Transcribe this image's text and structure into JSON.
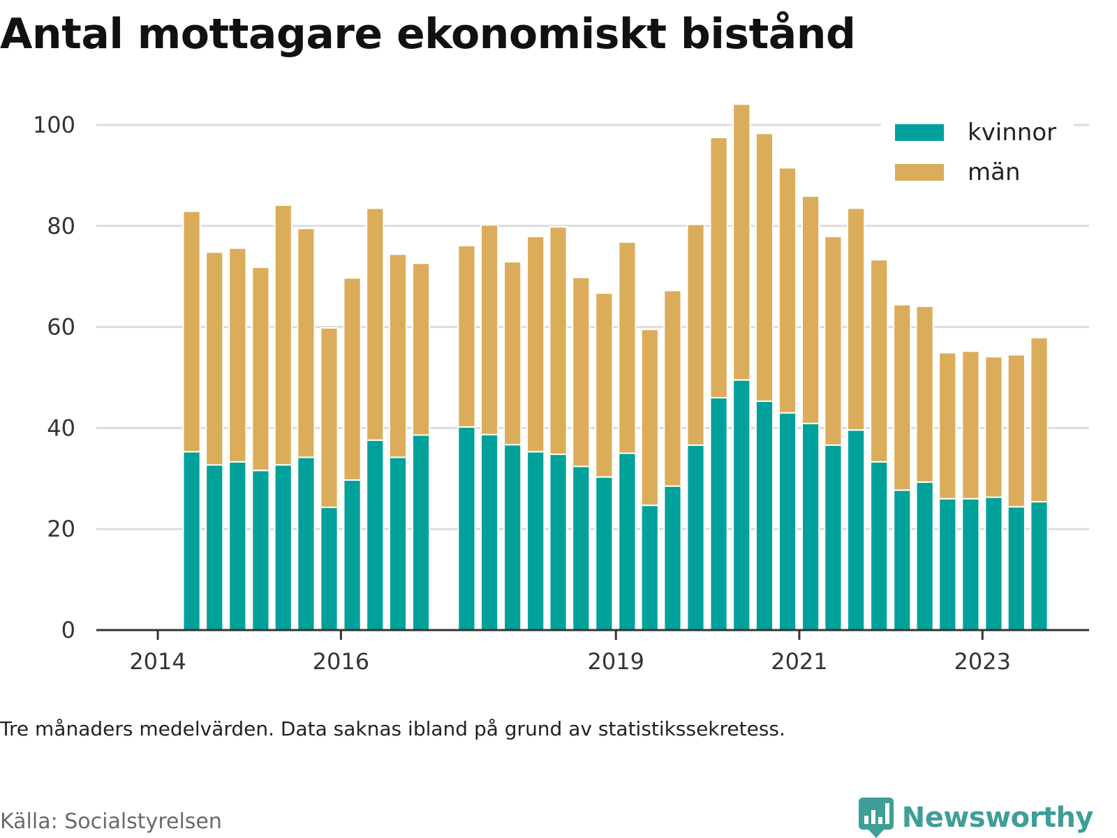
{
  "title": "Antal mottagare ekonomiskt bistånd",
  "note": "Tre månaders medelvärden. Data saknas ibland på grund av statistikssekretess.",
  "source": "Källa: Socialstyrelsen",
  "brand": {
    "name": "Newsworthy",
    "icon": "newsworthy-logo-icon",
    "color": "#3f9e97"
  },
  "chart_data": {
    "type": "bar",
    "stacked": true,
    "x_tick_labels": [
      "2014",
      "2016",
      "2019",
      "2021",
      "2023"
    ],
    "x_ticks": [
      "2014-01",
      "2016-01",
      "2019-01",
      "2021-01",
      "2023-01"
    ],
    "y_ticks": [
      0,
      20,
      40,
      60,
      80,
      100
    ],
    "ylim": [
      0,
      104
    ],
    "grid": true,
    "legend_position": "top-right",
    "categories": [
      "2014-04",
      "2014-07",
      "2014-10",
      "2015-01",
      "2015-04",
      "2015-07",
      "2015-10",
      "2016-01",
      "2016-04",
      "2016-07",
      "2016-10",
      "2017-01",
      "2017-04",
      "2017-07",
      "2017-10",
      "2018-01",
      "2018-04",
      "2018-07",
      "2018-10",
      "2019-01",
      "2019-04",
      "2019-07",
      "2019-10",
      "2020-01",
      "2020-04",
      "2020-07",
      "2020-10",
      "2021-01",
      "2021-04",
      "2021-07",
      "2021-10",
      "2022-01",
      "2022-04",
      "2022-07",
      "2022-10",
      "2023-01",
      "2023-04",
      "2023-07",
      "2023-10"
    ],
    "series": [
      {
        "name": "kvinnor",
        "color": "#00a19a",
        "values": [
          35.3,
          32.7,
          33.3,
          31.6,
          32.7,
          34.2,
          24.3,
          29.7,
          37.6,
          34.2,
          38.6,
          null,
          40.2,
          38.7,
          36.7,
          35.3,
          34.8,
          32.4,
          30.3,
          35.0,
          24.7,
          28.5,
          36.6,
          46.0,
          49.5,
          45.3,
          43.0,
          40.9,
          36.6,
          39.6,
          33.3,
          27.7,
          29.3,
          26.0,
          26.0,
          26.3,
          24.4,
          25.4,
          null
        ]
      },
      {
        "name": "män",
        "color": "#dbad5a",
        "values": [
          47.6,
          42.1,
          42.3,
          40.2,
          51.4,
          45.3,
          35.5,
          40.0,
          45.9,
          40.2,
          34.0,
          null,
          35.9,
          41.5,
          36.2,
          42.6,
          45.0,
          37.4,
          36.4,
          41.8,
          34.8,
          38.7,
          43.7,
          51.5,
          54.6,
          53.0,
          48.5,
          45.0,
          41.3,
          43.9,
          40.0,
          36.7,
          34.8,
          28.9,
          29.2,
          27.8,
          30.1,
          32.5,
          null
        ]
      }
    ]
  }
}
